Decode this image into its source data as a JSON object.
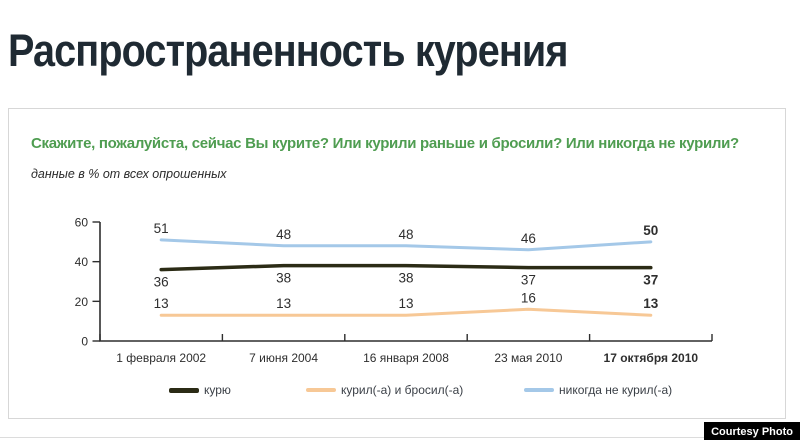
{
  "header": {
    "title": "Распространенность курения"
  },
  "panel": {
    "question": "Скажите, пожалуйста, сейчас Вы курите? Или курили раньше и бросили? Или никогда не курили?",
    "subtitle": "данные в % от всех опрошенных"
  },
  "chart_data": {
    "type": "line",
    "title": "Распространенность курения",
    "categories": [
      "1 февраля 2002",
      "7 июня 2004",
      "16 января 2008",
      "23 мая 2010",
      "17 октября 2010"
    ],
    "series": [
      {
        "name": "курю",
        "color": "#2b2b15",
        "values": [
          36,
          38,
          38,
          37,
          37
        ],
        "label_position": "below"
      },
      {
        "name": "курил(-а) и бросил(-а)",
        "color": "#f7c896",
        "values": [
          13,
          13,
          13,
          16,
          13
        ],
        "label_position": "above"
      },
      {
        "name": "никогда не курил(-а)",
        "color": "#a4c8e8",
        "values": [
          51,
          48,
          48,
          46,
          50
        ],
        "label_position": "above"
      }
    ],
    "ylim": [
      0,
      60
    ],
    "yticks": [
      0,
      20,
      40,
      60
    ],
    "ylabel": "",
    "xlabel": "",
    "grid": false,
    "legend_position": "bottom",
    "last_column_emphasis": true
  },
  "footer": {
    "credit": "Courtesy Photo"
  },
  "colors": {
    "title": "#1f2a33",
    "question_green": "#4f9d51",
    "axis": "#2e2e2e",
    "panel_border": "#d7d7d7"
  }
}
